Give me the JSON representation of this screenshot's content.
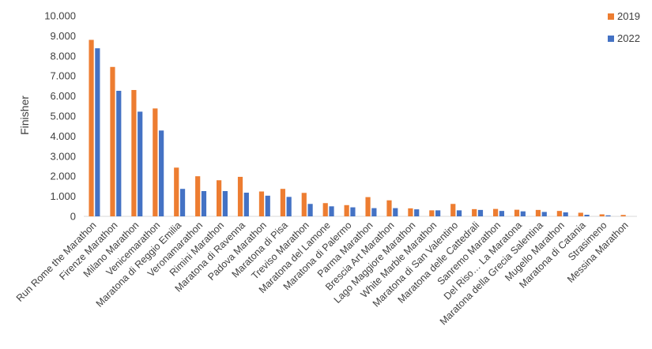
{
  "chart_data": {
    "type": "bar",
    "title": "",
    "xlabel": "",
    "ylabel": "Finisher",
    "ylim": [
      0,
      10000
    ],
    "yticks": [
      "0",
      "1.000",
      "2.000",
      "3.000",
      "4.000",
      "5.000",
      "6.000",
      "7.000",
      "8.000",
      "9.000",
      "10.000"
    ],
    "grid": false,
    "legend_position": "top-right",
    "categories": [
      "Run Rome the Marathon",
      "Firenze Marathon",
      "Milano Marathon",
      "Venicemarathon",
      "Maratona di Reggio Emilia",
      "Veronamarathon",
      "Rimini Marathon",
      "Maratona di Ravenna",
      "Padova Marathon",
      "Maratona di Pisa",
      "Treviso Marathon",
      "Maratona del Lamone",
      "Maratona di Palermo",
      "Parma Marathon",
      "Brescia Art Marathon",
      "Lago Maggiore Marathon",
      "White Marble Marathon",
      "Maratona di  San Valentino",
      "Maratona delle Cattedrali",
      "Sanremo Marathon",
      "Del Riso… La Maratona",
      "Maratona della Grecia Salentina",
      "Mugello Marathon",
      "Maratona di Catania",
      "Strasimeno",
      "Messina Marathon"
    ],
    "series": [
      {
        "name": "2019",
        "color": "#ED7D31",
        "values": [
          8800,
          7450,
          6300,
          5380,
          2430,
          2000,
          1800,
          1970,
          1240,
          1370,
          1170,
          660,
          560,
          960,
          800,
          400,
          300,
          620,
          360,
          370,
          330,
          320,
          270,
          180,
          100,
          70
        ]
      },
      {
        "name": "2022",
        "color": "#4472C4",
        "values": [
          8380,
          6260,
          5220,
          4280,
          1370,
          1260,
          1260,
          1180,
          1030,
          970,
          620,
          500,
          450,
          410,
          410,
          350,
          300,
          300,
          320,
          270,
          250,
          220,
          200,
          80,
          50,
          0
        ]
      }
    ]
  }
}
